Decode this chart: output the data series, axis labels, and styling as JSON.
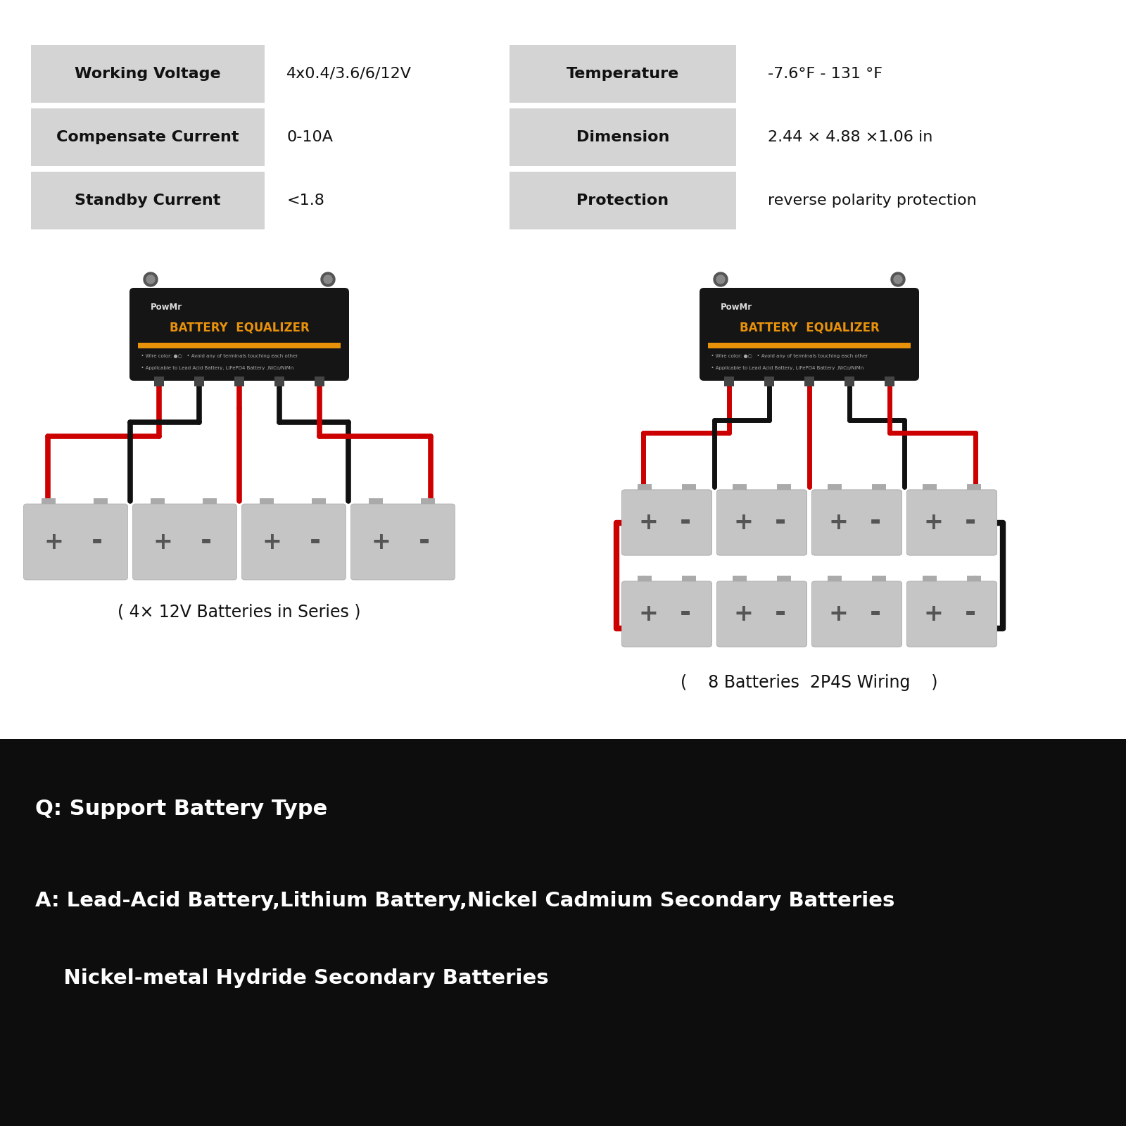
{
  "bg_color": "#ffffff",
  "table_bg": "#d4d4d4",
  "table_rows": [
    [
      "Working Voltage",
      "4x0.4/3.6/6/12V",
      "Temperature",
      "-7.6°F - 131 °F"
    ],
    [
      "Compensate Current",
      "0-10A",
      "Dimension",
      "2.44 × 4.88 ×1.06 in"
    ],
    [
      "Standby Current",
      "<1.8",
      "Protection",
      "reverse polarity protection"
    ]
  ],
  "caption_left": "( 4× 12V Batteries in Series )",
  "caption_right": "(    8 Batteries  2P4S Wiring    )",
  "bottom_bg": "#0d0d0d",
  "bottom_lines": [
    "Q: Support Battery Type",
    "A: Lead-Acid Battery,Lithium Battery,Nickel Cadmium Secondary Batteries",
    "    Nickel-metal Hydride Secondary Batteries"
  ],
  "device_color": "#151515",
  "orange_color": "#e8920a",
  "red_color": "#cc0000",
  "black_wire": "#111111",
  "battery_color": "#c5c5c5",
  "battery_dark": "#999999",
  "battery_light": "#e0e0e0"
}
